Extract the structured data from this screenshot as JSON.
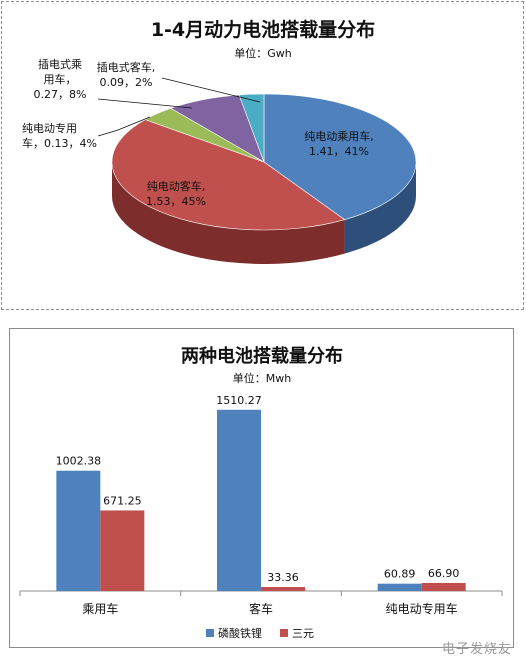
{
  "chart_data": [
    {
      "type": "pie",
      "title": "1-4月动力电池搭载量分布",
      "subtitle": "单位：Gwh",
      "slices": [
        {
          "name": "纯电动乘用车",
          "value": 1.41,
          "percent": "41%",
          "label": "纯电动乘用车,",
          "value_label": "1.41，41%",
          "color": "#4f81bd",
          "dark": "#2e4f7a"
        },
        {
          "name": "纯电动客车",
          "value": 1.53,
          "percent": "45%",
          "label": "纯电动客车,",
          "value_label": "1.53，45%",
          "color": "#c0504d",
          "dark": "#7d2e2c"
        },
        {
          "name": "纯电动专用车",
          "value": 0.13,
          "percent": "4%",
          "label": "纯电动专用",
          "label2": "车，0.13，4%",
          "color": "#9bbb59",
          "dark": "#60792f"
        },
        {
          "name": "插电式乘用车",
          "value": 0.27,
          "percent": "8%",
          "label": "插电式乘",
          "label2": "用车，",
          "label3": "0.27，8%",
          "color": "#8064a2",
          "dark": "#4d3a66"
        },
        {
          "name": "插电式客车",
          "value": 0.09,
          "percent": "2%",
          "label": "插电式客车,",
          "value_label": "0.09，2%",
          "color": "#4bacc6",
          "dark": "#2b6e80"
        }
      ]
    },
    {
      "type": "bar",
      "title": "两种电池搭载量分布",
      "subtitle": "单位：Mwh",
      "categories": [
        "乘用车",
        "客车",
        "纯电动专用车"
      ],
      "series": [
        {
          "name": "磷酸铁锂",
          "values": [
            1002.38,
            1510.27,
            60.89
          ],
          "labels": [
            "1002.38",
            "1510.27",
            "60.89"
          ],
          "color": "#4f81bd"
        },
        {
          "name": "三元",
          "values": [
            671.25,
            33.36,
            66.9
          ],
          "labels": [
            "671.25",
            "33.36",
            "66.90"
          ],
          "color": "#c0504d"
        }
      ],
      "ylim": [
        0,
        1600
      ],
      "legend": "bottom"
    }
  ],
  "watermark": "电子发烧友"
}
